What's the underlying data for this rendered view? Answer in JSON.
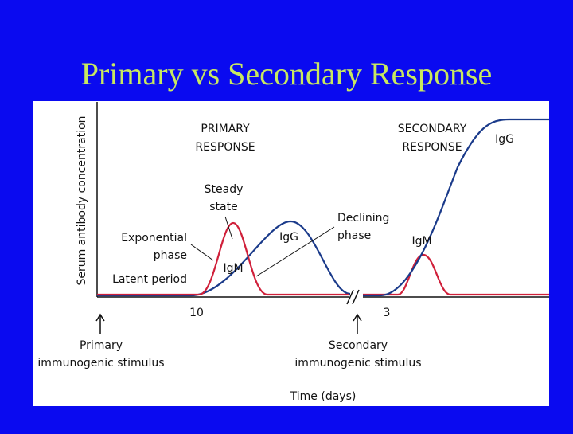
{
  "title": "Primary vs Secondary Response",
  "chart": {
    "y_axis_label": "Serum antibody concentration",
    "x_axis_label": "Time (days)",
    "x_ticks": [
      10,
      3
    ],
    "primary_response": [
      "PRIMARY",
      "RESPONSE"
    ],
    "secondary_response": [
      "SECONDARY",
      "RESPONSE"
    ],
    "annotations": {
      "steady_state": [
        "Steady",
        "state"
      ],
      "exponential_phase": [
        "Exponential",
        "phase"
      ],
      "declining_phase": [
        "Declining",
        "phase"
      ],
      "latent_period": "Latent period",
      "primary_igm": "IgM",
      "primary_igg": "IgG",
      "secondary_igm": "IgM",
      "secondary_igg": "IgG"
    },
    "primary_stimulus": [
      "Primary",
      "immunogenic stimulus"
    ],
    "secondary_stimulus": [
      "Secondary",
      "immunogenic stimulus"
    ]
  }
}
